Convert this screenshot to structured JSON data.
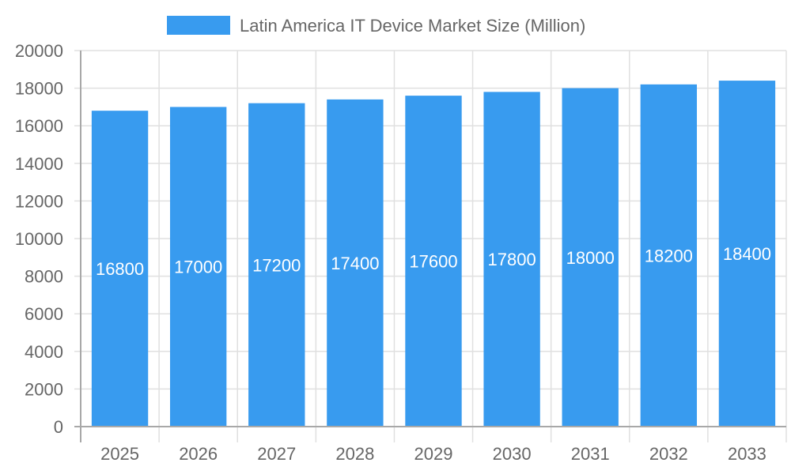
{
  "chart_data": {
    "type": "bar",
    "title": "",
    "xlabel": "",
    "ylabel": "",
    "categories": [
      "2025",
      "2026",
      "2027",
      "2028",
      "2029",
      "2030",
      "2031",
      "2032",
      "2033"
    ],
    "series": [
      {
        "name": "Latin America IT Device Market Size (Million)",
        "values": [
          16800,
          17000,
          17200,
          17400,
          17600,
          17800,
          18000,
          18200,
          18400
        ]
      }
    ],
    "ylim": [
      0,
      20000
    ],
    "yticks": [
      0,
      2000,
      4000,
      6000,
      8000,
      10000,
      12000,
      14000,
      16000,
      18000,
      20000
    ],
    "grid": true,
    "legend": "top-center",
    "data_labels": true,
    "colors": {
      "bar": "#389BEF",
      "grid": "#E0E0E0",
      "axis": "#A8A8A8",
      "text": "#666666",
      "label": "#FFFFFF"
    }
  }
}
